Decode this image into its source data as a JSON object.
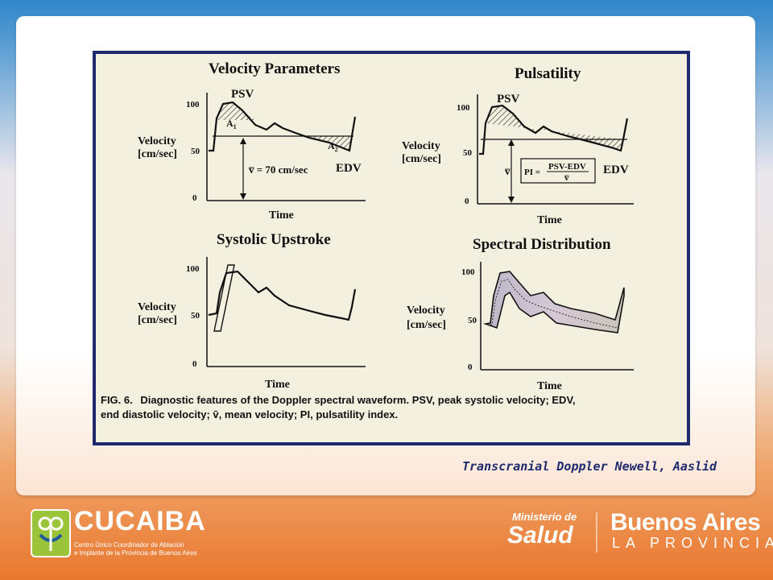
{
  "figure": {
    "panels": {
      "velocity_parameters": {
        "title": "Velocity Parameters",
        "y_label_1": "Velocity",
        "y_label_2": "[cm/sec]",
        "tick_100": "100",
        "tick_50": "50",
        "tick_0": "0",
        "x_label": "Time",
        "psv": "PSV",
        "edv": "EDV",
        "a1": "A",
        "a1_sub": "1",
        "a2": "A",
        "a2_sub": "2",
        "mean_label": "v̅ = 70 cm/sec"
      },
      "pulsatility": {
        "title": "Pulsatility",
        "y_label_1": "Velocity",
        "y_label_2": "[cm/sec]",
        "tick_100": "100",
        "tick_50": "50",
        "tick_0": "0",
        "x_label": "Time",
        "psv": "PSV",
        "edv": "EDV",
        "mean_symbol": "v̅",
        "pi_label": "PI =",
        "pi_numerator": "PSV-EDV",
        "pi_denominator": "v̅"
      },
      "systolic_upstroke": {
        "title": "Systolic Upstroke",
        "y_label_1": "Velocity",
        "y_label_2": "[cm/sec]",
        "tick_100": "100",
        "tick_50": "50",
        "tick_0": "0",
        "x_label": "Time"
      },
      "spectral_distribution": {
        "title": "Spectral Distribution",
        "y_label_1": "Velocity",
        "y_label_2": "[cm/sec]",
        "tick_100": "100",
        "tick_50": "50",
        "tick_0": "0",
        "x_label": "Time"
      }
    },
    "caption_bold": "FIG. 6.",
    "caption_line1": "Diagnostic features of the Doppler spectral waveform. PSV, peak systolic velocity; EDV,",
    "caption_line2": "end diastolic velocity; v̄, mean velocity; PI, pulsatility index."
  },
  "source_credit": "Transcranial Doppler Newell, Aaslid",
  "footer": {
    "cucaiba_name": "CUCAIBA",
    "cucaiba_sub_1": "Centro Único Coordinador de Ablación",
    "cucaiba_sub_2": "e Implante de la Provincia de Buenos Aires",
    "ministerio": "Ministerio de",
    "salud": "Salud",
    "ba_title": "Buenos Aires",
    "ba_sub": "LA PROVINCIA"
  }
}
